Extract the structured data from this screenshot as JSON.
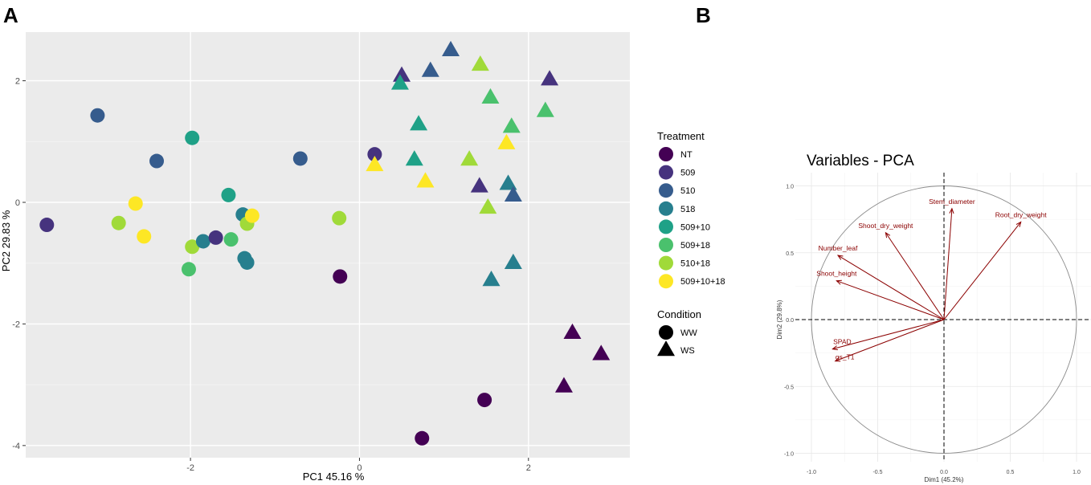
{
  "panel_labels": [
    "A",
    "B"
  ],
  "legend": {
    "treatment_title": "Treatment",
    "condition_title": "Condition",
    "treatments": [
      {
        "label": "NT",
        "color": "#440154"
      },
      {
        "label": "509",
        "color": "#46337e"
      },
      {
        "label": "510",
        "color": "#365c8d"
      },
      {
        "label": "518",
        "color": "#277f8e"
      },
      {
        "label": "509+10",
        "color": "#1fa187"
      },
      {
        "label": "509+18",
        "color": "#4ac16d"
      },
      {
        "label": "510+18",
        "color": "#a0da39"
      },
      {
        "label": "509+10+18",
        "color": "#fde725"
      }
    ],
    "conditions": [
      {
        "label": "WW",
        "shape": "circle"
      },
      {
        "label": "WS",
        "shape": "triangle"
      }
    ]
  },
  "chart_data": [
    {
      "type": "scatter",
      "title": "",
      "xlabel": "PC1 45.16 %",
      "ylabel": "PC2 29.83 %",
      "xlim": [
        -3.95,
        3.2
      ],
      "ylim": [
        -4.2,
        2.8
      ],
      "xticks": [
        -2,
        0,
        2
      ],
      "yticks": [
        -4,
        -2,
        0,
        2
      ],
      "xtick_labels": [
        "-2",
        "0",
        "2"
      ],
      "ytick_labels": [
        "-4",
        "-2",
        "0",
        "2"
      ],
      "grid": true,
      "background": "#ebebeb",
      "points": [
        {
          "x": -3.7,
          "y": -0.37,
          "treatment": "509",
          "condition": "WW"
        },
        {
          "x": -3.1,
          "y": 1.43,
          "treatment": "510",
          "condition": "WW"
        },
        {
          "x": -2.4,
          "y": 0.68,
          "treatment": "510",
          "condition": "WW"
        },
        {
          "x": -1.98,
          "y": 1.06,
          "treatment": "509+10",
          "condition": "WW"
        },
        {
          "x": -1.55,
          "y": 0.12,
          "treatment": "509+10",
          "condition": "WW"
        },
        {
          "x": -0.7,
          "y": 0.72,
          "treatment": "510",
          "condition": "WW"
        },
        {
          "x": 0.18,
          "y": 0.79,
          "treatment": "509",
          "condition": "WW"
        },
        {
          "x": -2.85,
          "y": -0.34,
          "treatment": "510+18",
          "condition": "WW"
        },
        {
          "x": -2.65,
          "y": -0.02,
          "treatment": "509+10+18",
          "condition": "WW"
        },
        {
          "x": -2.55,
          "y": -0.56,
          "treatment": "509+10+18",
          "condition": "WW"
        },
        {
          "x": -1.98,
          "y": -0.73,
          "treatment": "510+18",
          "condition": "WW"
        },
        {
          "x": -2.02,
          "y": -1.1,
          "treatment": "509+18",
          "condition": "WW"
        },
        {
          "x": -1.85,
          "y": -0.64,
          "treatment": "518",
          "condition": "WW"
        },
        {
          "x": -1.7,
          "y": -0.58,
          "treatment": "509",
          "condition": "WW"
        },
        {
          "x": -1.52,
          "y": -0.61,
          "treatment": "509+18",
          "condition": "WW"
        },
        {
          "x": -1.38,
          "y": -0.2,
          "treatment": "518",
          "condition": "WW"
        },
        {
          "x": -1.33,
          "y": -0.35,
          "treatment": "510+18",
          "condition": "WW"
        },
        {
          "x": -1.27,
          "y": -0.22,
          "treatment": "509+10+18",
          "condition": "WW"
        },
        {
          "x": -1.36,
          "y": -0.92,
          "treatment": "518",
          "condition": "WW"
        },
        {
          "x": -1.33,
          "y": -0.99,
          "treatment": "518",
          "condition": "WW"
        },
        {
          "x": -0.24,
          "y": -0.26,
          "treatment": "510+18",
          "condition": "WW"
        },
        {
          "x": -0.23,
          "y": -1.22,
          "treatment": "NT",
          "condition": "WW"
        },
        {
          "x": 1.48,
          "y": -3.25,
          "treatment": "NT",
          "condition": "WW"
        },
        {
          "x": 0.74,
          "y": -3.88,
          "treatment": "NT",
          "condition": "WW"
        },
        {
          "x": 1.08,
          "y": 2.5,
          "treatment": "510",
          "condition": "WS"
        },
        {
          "x": 0.5,
          "y": 2.08,
          "treatment": "509",
          "condition": "WS"
        },
        {
          "x": 0.84,
          "y": 2.16,
          "treatment": "510",
          "condition": "WS"
        },
        {
          "x": 1.43,
          "y": 2.26,
          "treatment": "510+18",
          "condition": "WS"
        },
        {
          "x": 2.25,
          "y": 2.02,
          "treatment": "509",
          "condition": "WS"
        },
        {
          "x": 0.48,
          "y": 1.95,
          "treatment": "509+10",
          "condition": "WS"
        },
        {
          "x": 1.55,
          "y": 1.72,
          "treatment": "509+18",
          "condition": "WS"
        },
        {
          "x": 2.2,
          "y": 1.5,
          "treatment": "509+18",
          "condition": "WS"
        },
        {
          "x": 0.7,
          "y": 1.28,
          "treatment": "509+10",
          "condition": "WS"
        },
        {
          "x": 1.8,
          "y": 1.24,
          "treatment": "509+18",
          "condition": "WS"
        },
        {
          "x": 1.74,
          "y": 0.97,
          "treatment": "509+10+18",
          "condition": "WS"
        },
        {
          "x": 0.18,
          "y": 0.61,
          "treatment": "509+10+18",
          "condition": "WS"
        },
        {
          "x": 0.65,
          "y": 0.7,
          "treatment": "509+10",
          "condition": "WS"
        },
        {
          "x": 1.3,
          "y": 0.7,
          "treatment": "510+18",
          "condition": "WS"
        },
        {
          "x": 0.78,
          "y": 0.34,
          "treatment": "509+10+18",
          "condition": "WS"
        },
        {
          "x": 1.42,
          "y": 0.26,
          "treatment": "509",
          "condition": "WS"
        },
        {
          "x": 1.76,
          "y": 0.3,
          "treatment": "518",
          "condition": "WS"
        },
        {
          "x": 1.82,
          "y": 0.11,
          "treatment": "510",
          "condition": "WS"
        },
        {
          "x": 1.52,
          "y": -0.09,
          "treatment": "510+18",
          "condition": "WS"
        },
        {
          "x": 1.82,
          "y": -1.0,
          "treatment": "518",
          "condition": "WS"
        },
        {
          "x": 1.56,
          "y": -1.28,
          "treatment": "518",
          "condition": "WS"
        },
        {
          "x": 2.52,
          "y": -2.15,
          "treatment": "NT",
          "condition": "WS"
        },
        {
          "x": 2.86,
          "y": -2.5,
          "treatment": "NT",
          "condition": "WS"
        },
        {
          "x": 2.42,
          "y": -3.03,
          "treatment": "NT",
          "condition": "WS"
        }
      ]
    },
    {
      "type": "vector",
      "title": "Variables - PCA",
      "xlabel": "Dim1 (45.2%)",
      "ylabel": "Dim2 (29.8%)",
      "xlim": [
        -1.1,
        1.1
      ],
      "ylim": [
        -1.05,
        1.05
      ],
      "xticks": [
        -1.0,
        -0.5,
        0.0,
        0.5,
        1.0
      ],
      "yticks": [
        -1.0,
        -0.5,
        0.0,
        0.5,
        1.0
      ],
      "xtick_labels": [
        "-1.0",
        "-0.5",
        "0.0",
        "0.5",
        "1.0"
      ],
      "ytick_labels": [
        "-1.0",
        "-0.5",
        "0.0",
        "0.5",
        "1.0"
      ],
      "grid": true,
      "arrow_color": "#8b0000",
      "variables": [
        {
          "name": "Stem_diameter",
          "x": 0.06,
          "y": 0.83
        },
        {
          "name": "Root_dry_weight",
          "x": 0.58,
          "y": 0.73
        },
        {
          "name": "Shoot_dry_weight",
          "x": -0.44,
          "y": 0.65
        },
        {
          "name": "Number_leaf",
          "x": -0.8,
          "y": 0.48
        },
        {
          "name": "Shoot_height",
          "x": -0.81,
          "y": 0.29
        },
        {
          "name": "SPAD",
          "x": -0.84,
          "y": -0.22
        },
        {
          "name": "gs_T1",
          "x": -0.82,
          "y": -0.31
        }
      ]
    }
  ]
}
